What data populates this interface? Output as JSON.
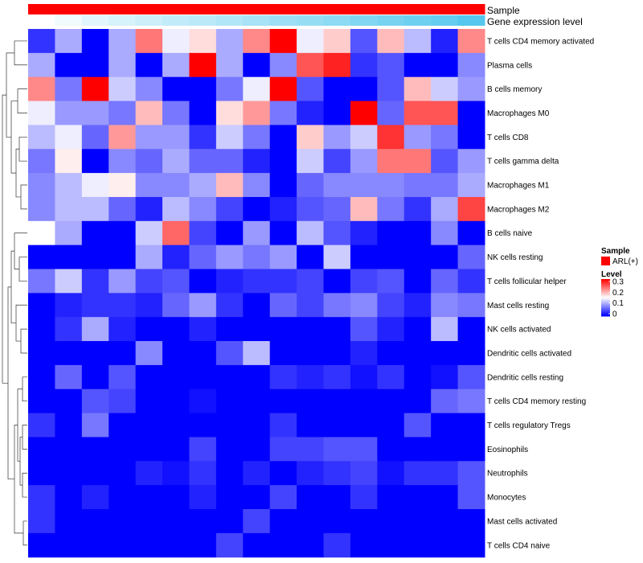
{
  "chart_data": {
    "type": "heatmap",
    "annotation": {
      "sample_label": "Sample",
      "gene_label": "Gene expression level",
      "sample_color": "#ff0000",
      "gene_color_low": "#ffffff",
      "gene_color_high": "#56c8ee"
    },
    "legend": {
      "sample_title": "Sample",
      "sample_entry": "ARL(+)",
      "level_title": "Level",
      "ticks": [
        "0.3",
        "0.2",
        "0.1",
        "0"
      ],
      "range": [
        0,
        0.3
      ]
    },
    "colors": {
      "low": "#0000ff",
      "mid": "#ffffff",
      "high": "#ff0000"
    },
    "rows": [
      "T cells CD4 memory activated",
      "Plasma cells",
      "B cells memory",
      "Macrophages M0",
      "T cells CD8",
      "T cells gamma delta",
      "Macrophages M1",
      "Macrophages M2",
      "B cells naive",
      "NK cells resting",
      "T cells follicular helper",
      "Mast cells resting",
      "NK cells activated",
      "Dendritic cells activated",
      "Dendritic cells resting",
      "T cells CD4 memory resting",
      "T cells regulatory  Tregs",
      "Eosinophils",
      "Neutrophils",
      "Monocytes",
      "Mast cells activated",
      "T cells CD4 naive"
    ],
    "values": [
      [
        0.03,
        0.1,
        0.0,
        0.1,
        0.23,
        0.14,
        0.17,
        0.1,
        0.22,
        0.3,
        0.14,
        0.18,
        0.05,
        0.19,
        0.11,
        0.02,
        0.22
      ],
      [
        0.1,
        0.0,
        0.0,
        0.1,
        0.0,
        0.1,
        0.3,
        0.1,
        0.0,
        0.08,
        0.25,
        0.28,
        0.03,
        0.05,
        0.0,
        0.0,
        0.08
      ],
      [
        0.22,
        0.07,
        0.3,
        0.12,
        0.08,
        0.0,
        0.0,
        0.07,
        0.14,
        0.3,
        0.05,
        0.0,
        0.0,
        0.05,
        0.19,
        0.12,
        0.09
      ],
      [
        0.14,
        0.09,
        0.09,
        0.07,
        0.19,
        0.07,
        0.0,
        0.17,
        0.21,
        0.07,
        0.02,
        0.0,
        0.3,
        0.06,
        0.25,
        0.25,
        0.0
      ],
      [
        0.11,
        0.14,
        0.06,
        0.21,
        0.09,
        0.09,
        0.03,
        0.12,
        0.07,
        0.0,
        0.18,
        0.09,
        0.12,
        0.27,
        0.09,
        0.07,
        0.0
      ],
      [
        0.07,
        0.16,
        0.0,
        0.08,
        0.06,
        0.1,
        0.06,
        0.06,
        0.02,
        0.0,
        0.12,
        0.04,
        0.09,
        0.23,
        0.23,
        0.05,
        0.09
      ],
      [
        0.08,
        0.11,
        0.14,
        0.16,
        0.08,
        0.08,
        0.1,
        0.19,
        0.08,
        0.0,
        0.06,
        0.08,
        0.08,
        0.08,
        0.07,
        0.07,
        0.1
      ],
      [
        0.08,
        0.11,
        0.11,
        0.06,
        0.02,
        0.11,
        0.08,
        0.04,
        0.0,
        0.02,
        0.05,
        0.06,
        0.19,
        0.07,
        0.03,
        0.1,
        0.26
      ],
      [
        0.15,
        0.1,
        0.0,
        0.0,
        0.12,
        0.24,
        0.04,
        0.0,
        0.09,
        0.0,
        0.11,
        0.05,
        0.02,
        0.0,
        0.0,
        0.08,
        0.0
      ],
      [
        0.0,
        0.0,
        0.0,
        0.0,
        0.1,
        0.02,
        0.06,
        0.09,
        0.07,
        0.09,
        0.0,
        0.12,
        0.0,
        0.0,
        0.0,
        0.0,
        0.06
      ],
      [
        0.07,
        0.12,
        0.03,
        0.09,
        0.04,
        0.05,
        0.0,
        0.02,
        0.03,
        0.03,
        0.04,
        0.0,
        0.04,
        0.05,
        0.0,
        0.06,
        0.03
      ],
      [
        0.0,
        0.02,
        0.03,
        0.03,
        0.02,
        0.06,
        0.09,
        0.03,
        0.0,
        0.06,
        0.04,
        0.07,
        0.08,
        0.04,
        0.02,
        0.08,
        0.07
      ],
      [
        0.0,
        0.03,
        0.1,
        0.02,
        0.0,
        0.0,
        0.02,
        0.0,
        0.0,
        0.0,
        0.0,
        0.0,
        0.05,
        0.02,
        0.0,
        0.11,
        0.0
      ],
      [
        0.0,
        0.0,
        0.0,
        0.0,
        0.08,
        0.0,
        0.0,
        0.05,
        0.11,
        0.0,
        0.0,
        0.0,
        0.02,
        0.0,
        0.0,
        0.0,
        0.0
      ],
      [
        0.0,
        0.06,
        0.0,
        0.05,
        0.0,
        0.0,
        0.0,
        0.0,
        0.0,
        0.03,
        0.02,
        0.03,
        0.01,
        0.03,
        0.0,
        0.01,
        0.05
      ],
      [
        0.0,
        0.0,
        0.05,
        0.04,
        0.0,
        0.0,
        0.01,
        0.0,
        0.0,
        0.0,
        0.0,
        0.0,
        0.0,
        0.0,
        0.0,
        0.06,
        0.07
      ],
      [
        0.03,
        0.0,
        0.07,
        0.0,
        0.0,
        0.0,
        0.0,
        0.0,
        0.0,
        0.03,
        0.0,
        0.0,
        0.0,
        0.0,
        0.05,
        0.0,
        0.0
      ],
      [
        0.0,
        0.0,
        0.0,
        0.0,
        0.0,
        0.0,
        0.04,
        0.0,
        0.0,
        0.04,
        0.04,
        0.05,
        0.05,
        0.0,
        0.0,
        0.0,
        0.0
      ],
      [
        0.0,
        0.0,
        0.0,
        0.0,
        0.02,
        0.01,
        0.03,
        0.0,
        0.02,
        0.0,
        0.02,
        0.03,
        0.04,
        0.01,
        0.03,
        0.03,
        0.05
      ],
      [
        0.03,
        0.0,
        0.02,
        0.0,
        0.0,
        0.0,
        0.02,
        0.0,
        0.0,
        0.04,
        0.0,
        0.0,
        0.03,
        0.0,
        0.0,
        0.0,
        0.05
      ],
      [
        0.03,
        0.0,
        0.0,
        0.0,
        0.0,
        0.0,
        0.0,
        0.0,
        0.04,
        0.0,
        0.0,
        0.0,
        0.0,
        0.0,
        0.0,
        0.0,
        0.0
      ],
      [
        0.0,
        0.0,
        0.0,
        0.0,
        0.0,
        0.0,
        0.0,
        0.04,
        0.0,
        0.0,
        0.0,
        0.03,
        0.0,
        0.0,
        0.0,
        0.0,
        0.0
      ]
    ],
    "gene_expression": [
      0.0,
      0.08,
      0.18,
      0.24,
      0.3,
      0.36,
      0.4,
      0.46,
      0.52,
      0.58,
      0.62,
      0.68,
      0.74,
      0.8,
      0.86,
      0.92,
      1.0
    ]
  }
}
